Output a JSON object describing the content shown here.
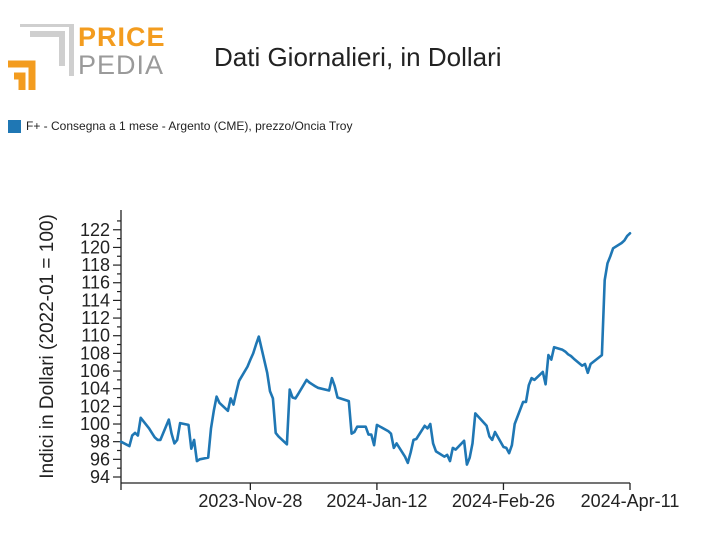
{
  "logo": {
    "word_top": "PRICE",
    "word_bottom": "PEDIA"
  },
  "title": "Dati Giornalieri, in Dollari",
  "colors": {
    "series": "#1f77b4",
    "logo_orange": "#f39c1f",
    "logo_grey": "#9a9a9a"
  },
  "chart_data": {
    "type": "line",
    "ylabel": "Indici in Dollari (2022-01 = 100)",
    "ylim": [
      94,
      123
    ],
    "yticks": [
      94,
      96,
      98,
      100,
      102,
      104,
      106,
      108,
      110,
      112,
      114,
      116,
      118,
      120,
      122
    ],
    "xlim": [
      "2023-10-13",
      "2024-04-11"
    ],
    "xticks": [
      {
        "date": "2023-10-13",
        "label": ""
      },
      {
        "date": "2023-11-28",
        "label": "2023-Nov-28"
      },
      {
        "date": "2024-01-12",
        "label": "2024-Jan-12"
      },
      {
        "date": "2024-02-26",
        "label": "2024-Feb-26"
      },
      {
        "date": "2024-04-11",
        "label": "2024-Apr-11"
      }
    ],
    "grid": false,
    "series": [
      {
        "name": "F+ - Consegna a 1 mese - Argento (CME), prezzo/Oncia Troy",
        "x": [
          "2023-10-13",
          "2023-10-16",
          "2023-10-17",
          "2023-10-18",
          "2023-10-19",
          "2023-10-20",
          "2023-10-23",
          "2023-10-24",
          "2023-10-25",
          "2023-10-26",
          "2023-10-27",
          "2023-10-30",
          "2023-10-31",
          "2023-11-01",
          "2023-11-02",
          "2023-11-03",
          "2023-11-06",
          "2023-11-07",
          "2023-11-08",
          "2023-11-09",
          "2023-11-10",
          "2023-11-13",
          "2023-11-14",
          "2023-11-15",
          "2023-11-16",
          "2023-11-17",
          "2023-11-20",
          "2023-11-21",
          "2023-11-22",
          "2023-11-23",
          "2023-11-24",
          "2023-11-27",
          "2023-11-28",
          "2023-11-29",
          "2023-11-30",
          "2023-12-01",
          "2023-12-04",
          "2023-12-05",
          "2023-12-06",
          "2023-12-07",
          "2023-12-08",
          "2023-12-11",
          "2023-12-12",
          "2023-12-13",
          "2023-12-14",
          "2023-12-15",
          "2023-12-18",
          "2023-12-19",
          "2023-12-20",
          "2023-12-21",
          "2023-12-22",
          "2023-12-26",
          "2023-12-27",
          "2023-12-28",
          "2023-12-29",
          "2024-01-02",
          "2024-01-03",
          "2024-01-04",
          "2024-01-05",
          "2024-01-08",
          "2024-01-09",
          "2024-01-10",
          "2024-01-11",
          "2024-01-12",
          "2024-01-16",
          "2024-01-17",
          "2024-01-18",
          "2024-01-19",
          "2024-01-22",
          "2024-01-23",
          "2024-01-24",
          "2024-01-25",
          "2024-01-26",
          "2024-01-29",
          "2024-01-30",
          "2024-01-31",
          "2024-02-01",
          "2024-02-02",
          "2024-02-05",
          "2024-02-06",
          "2024-02-07",
          "2024-02-08",
          "2024-02-09",
          "2024-02-12",
          "2024-02-13",
          "2024-02-14",
          "2024-02-15",
          "2024-02-16",
          "2024-02-20",
          "2024-02-21",
          "2024-02-22",
          "2024-02-23",
          "2024-02-26",
          "2024-02-27",
          "2024-02-28",
          "2024-02-29",
          "2024-03-01",
          "2024-03-04",
          "2024-03-05",
          "2024-03-06",
          "2024-03-07",
          "2024-03-08",
          "2024-03-11",
          "2024-03-12",
          "2024-03-13",
          "2024-03-14",
          "2024-03-15",
          "2024-03-18",
          "2024-03-19",
          "2024-03-20",
          "2024-03-21",
          "2024-03-22",
          "2024-03-25",
          "2024-03-26",
          "2024-03-27",
          "2024-03-28",
          "2024-04-01",
          "2024-04-02",
          "2024-04-03",
          "2024-04-04",
          "2024-04-05",
          "2024-04-08",
          "2024-04-09",
          "2024-04-10",
          "2024-04-11"
        ],
        "y": [
          98.0,
          97.5,
          98.7,
          99.0,
          98.7,
          100.7,
          99.5,
          99.0,
          98.5,
          98.2,
          98.2,
          100.5,
          98.9,
          97.8,
          98.2,
          100.1,
          99.9,
          97.2,
          98.2,
          95.8,
          96.0,
          96.2,
          99.5,
          101.5,
          103.1,
          102.4,
          101.5,
          102.9,
          102.2,
          103.6,
          104.9,
          106.5,
          107.3,
          108.0,
          109.0,
          109.9,
          105.8,
          103.7,
          102.9,
          99.0,
          98.6,
          97.7,
          103.9,
          103.0,
          102.9,
          103.4,
          105.0,
          104.7,
          104.5,
          104.3,
          104.1,
          103.8,
          105.2,
          104.3,
          103.0,
          102.6,
          98.9,
          99.1,
          99.7,
          99.7,
          98.8,
          98.8,
          97.6,
          99.9,
          99.2,
          98.9,
          97.3,
          97.8,
          96.3,
          95.6,
          96.8,
          98.2,
          98.3,
          99.8,
          99.5,
          100.0,
          97.8,
          96.9,
          96.3,
          96.5,
          95.8,
          97.3,
          97.1,
          98.1,
          95.4,
          96.2,
          97.8,
          101.2,
          99.8,
          98.6,
          98.2,
          99.1,
          97.4,
          97.3,
          96.7,
          97.6,
          100.0,
          102.5,
          102.5,
          104.4,
          105.2,
          105.0,
          105.9,
          104.5,
          107.8,
          107.3,
          108.7,
          108.4,
          108.2,
          107.9,
          107.7,
          107.4,
          106.6,
          106.8,
          105.8,
          106.8,
          107.8,
          116.3,
          118.2,
          119.0,
          119.9,
          120.5,
          120.8,
          121.3,
          121.6
        ]
      }
    ]
  }
}
